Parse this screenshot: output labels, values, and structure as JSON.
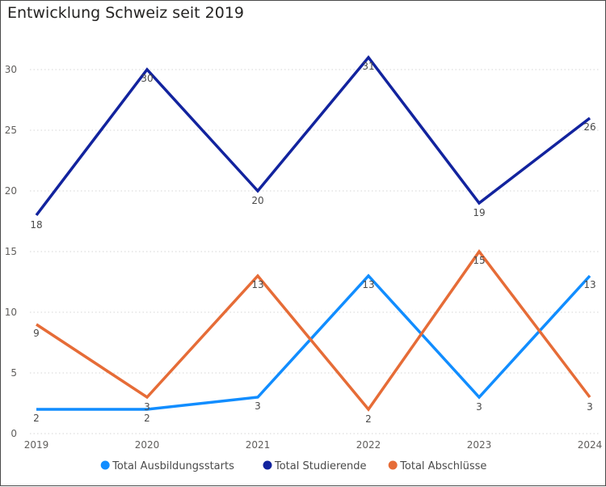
{
  "chart_data": {
    "type": "line",
    "title": "Entwicklung Schweiz seit 2019",
    "x": [
      "2019",
      "2020",
      "2021",
      "2022",
      "2023",
      "2024"
    ],
    "ylim": [
      0,
      33
    ],
    "yticks": [
      0,
      5,
      10,
      15,
      20,
      25,
      30
    ],
    "grid": true,
    "legend": "bottom",
    "series": [
      {
        "name": "Total Ausbildungsstarts",
        "color": "#118dff",
        "values": [
          2,
          2,
          3,
          13,
          3,
          13
        ]
      },
      {
        "name": "Total Studierende",
        "color": "#12239e",
        "values": [
          18,
          30,
          20,
          31,
          19,
          26
        ]
      },
      {
        "name": "Total Abschlüsse",
        "color": "#e66c37",
        "values": [
          9,
          3,
          13,
          2,
          15,
          3
        ]
      }
    ]
  }
}
